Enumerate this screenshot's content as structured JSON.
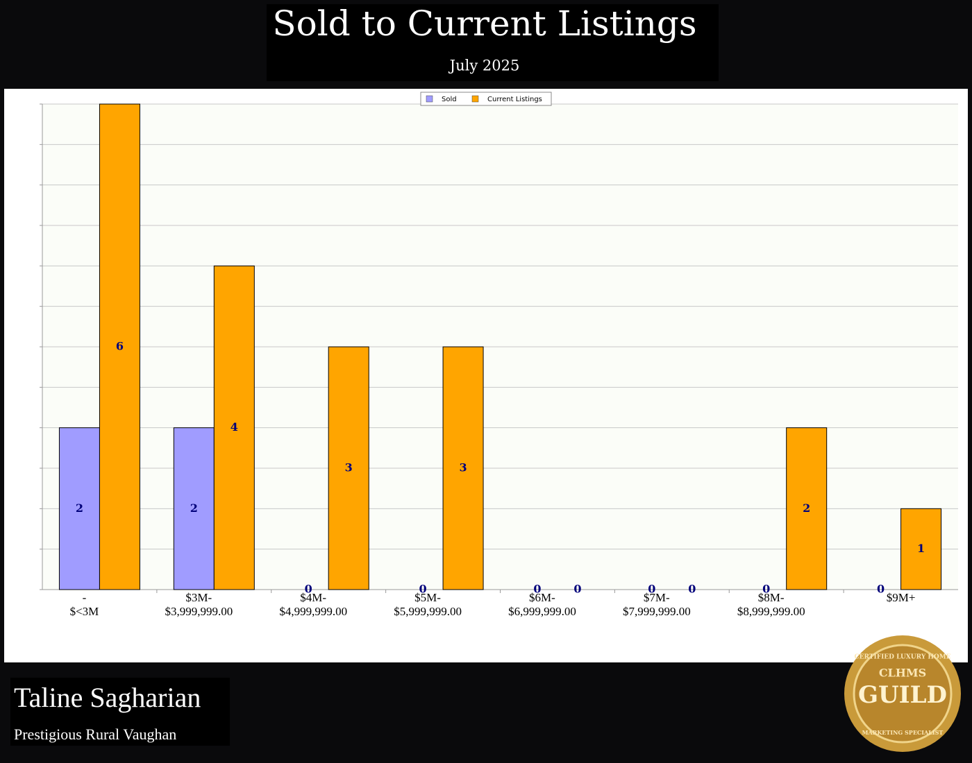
{
  "chart_data": {
    "type": "bar",
    "title": "Sold to Current Listings",
    "subtitle": "July 2025",
    "categories": [
      [
        "-",
        "$<3M"
      ],
      [
        "$3M-",
        "$3,999,999.00"
      ],
      [
        "$4M-",
        "$4,999,999.00"
      ],
      [
        "$5M-",
        "$5,999,999.00"
      ],
      [
        "$6M-",
        "$6,999,999.00"
      ],
      [
        "$7M-",
        "$7,999,999.00"
      ],
      [
        "$8M-",
        "$8,999,999.00"
      ],
      [
        "$9M+"
      ]
    ],
    "series": [
      {
        "name": "Sold",
        "color": "#a09cff",
        "values": [
          2,
          2,
          0,
          0,
          0,
          0,
          0,
          0
        ]
      },
      {
        "name": "Current Listings",
        "color": "#ffa500",
        "values": [
          6,
          4,
          3,
          3,
          0,
          0,
          2,
          1
        ]
      }
    ],
    "ylim": [
      0,
      6
    ],
    "yticks": [
      0,
      0.5,
      1,
      1.5,
      2,
      2.5,
      3,
      3.5,
      4,
      4.5,
      5,
      5.5,
      6
    ],
    "grid": true,
    "legend": "top"
  },
  "footer": {
    "name": "Taline Sagharian",
    "area": "Prestigious Rural Vaughan"
  },
  "badge": {
    "top": "CERTIFIED LUXURY HOME",
    "mark": "CLHMS",
    "word": "GUILD",
    "bottom": "MARKETING SPECIALIST"
  }
}
